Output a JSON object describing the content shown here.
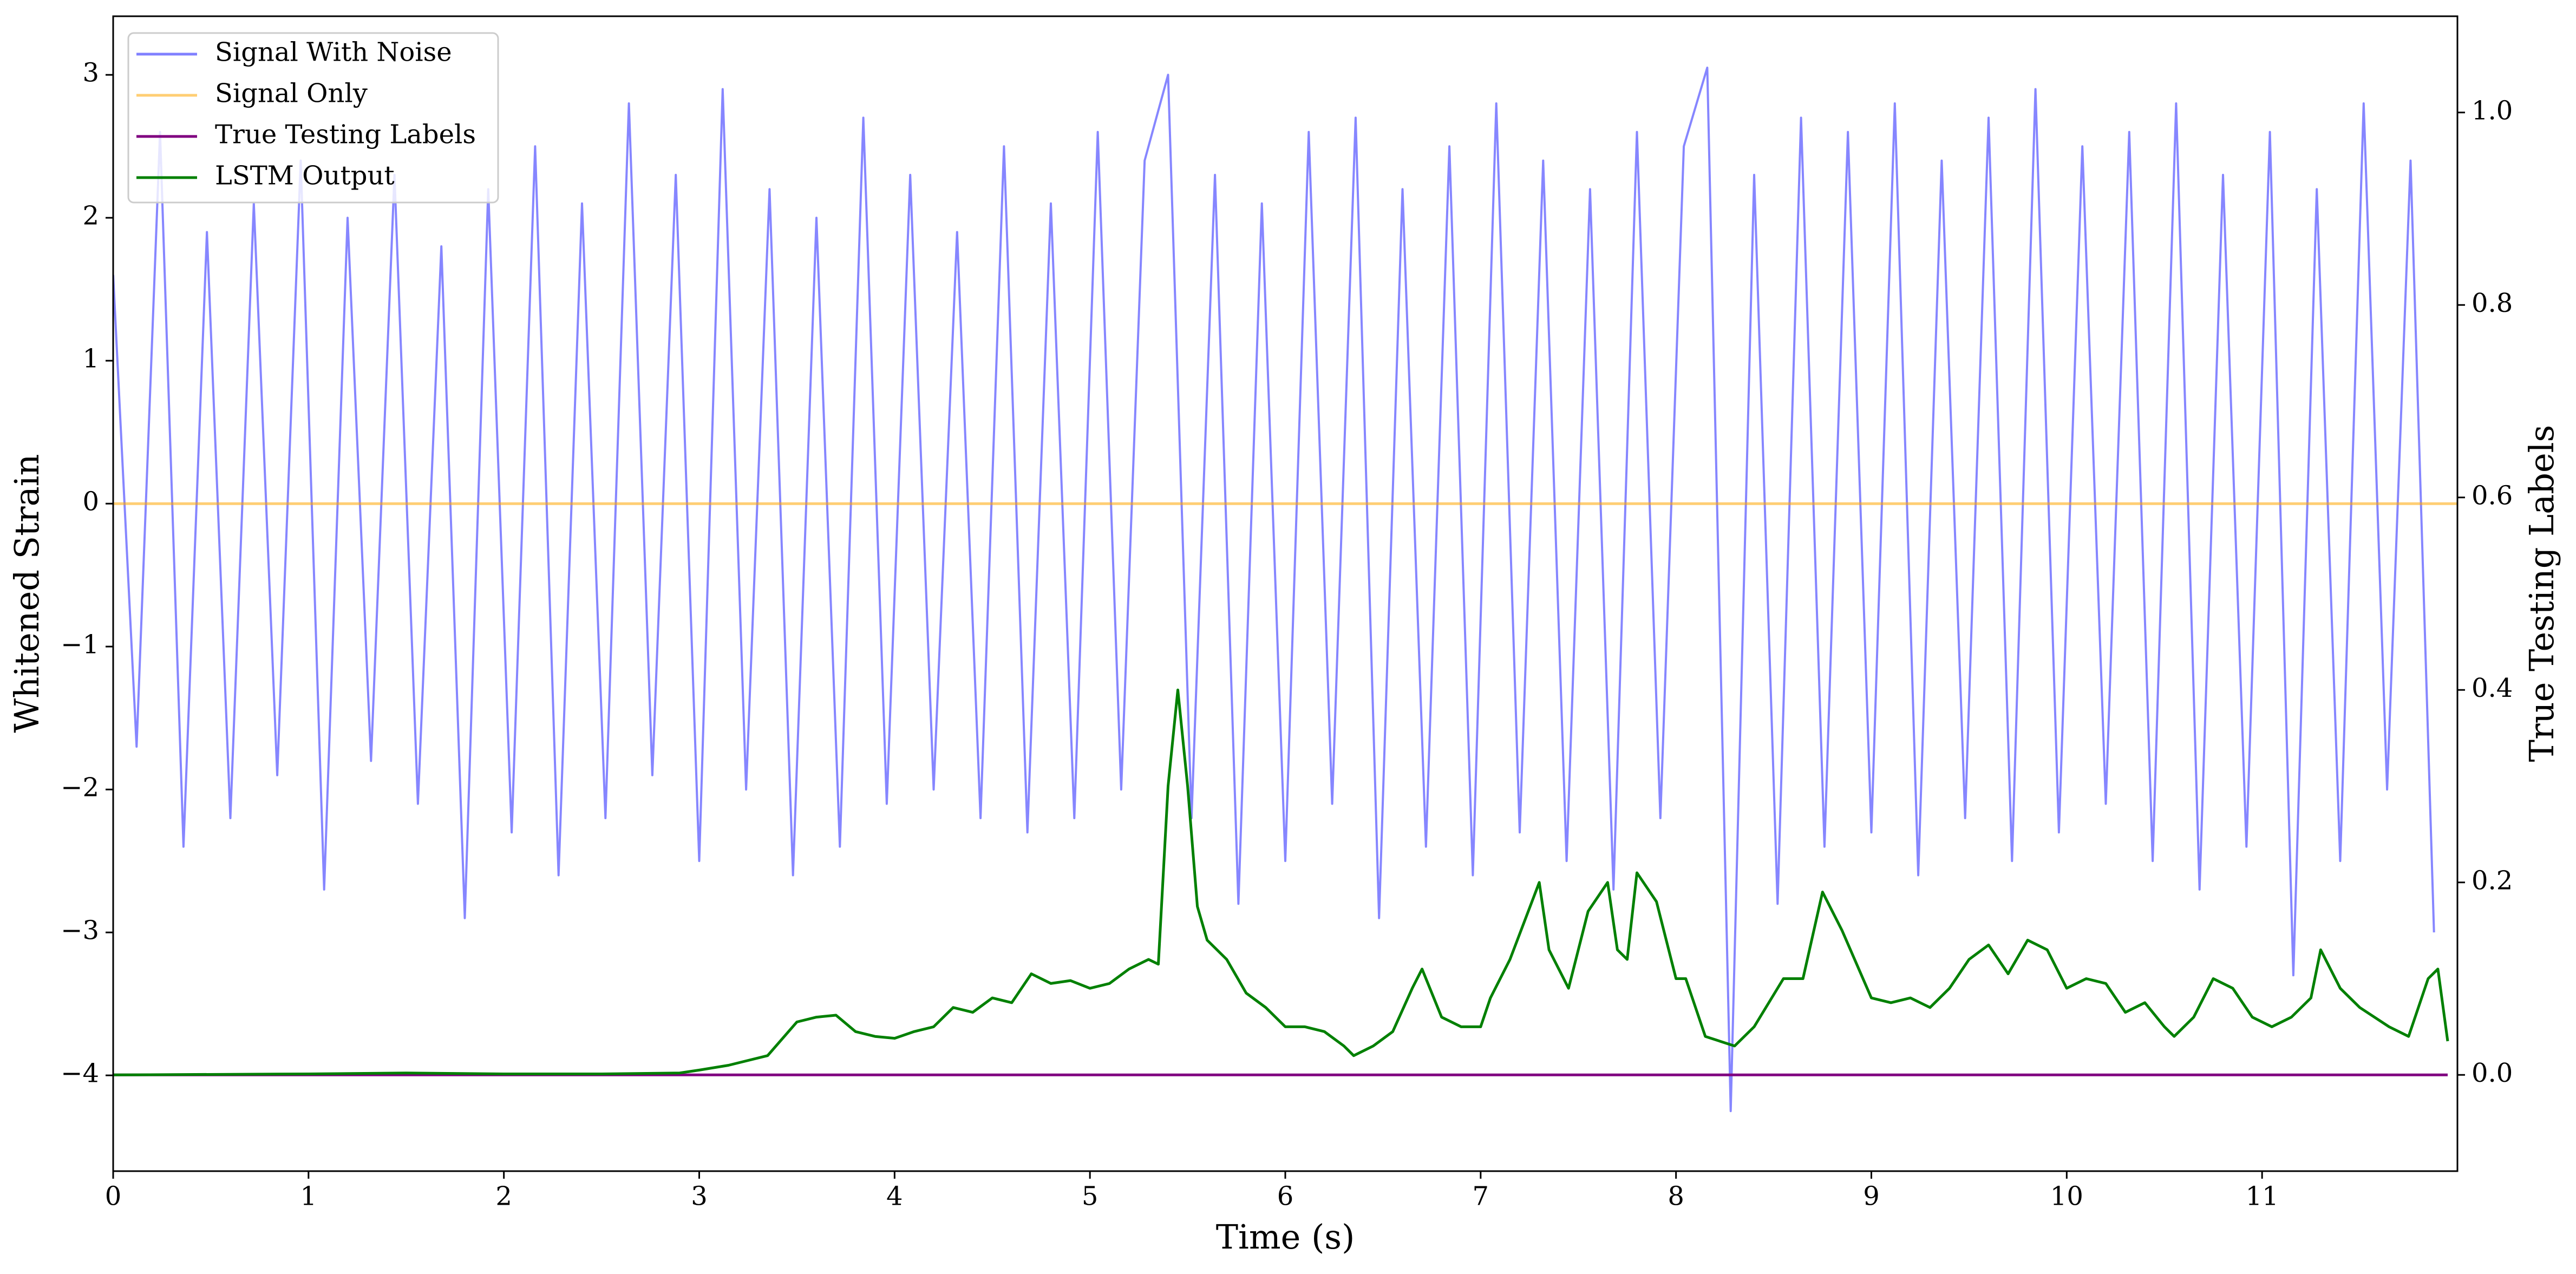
{
  "chart_data": {
    "type": "line",
    "x_label": "Time (s)",
    "y_label": "Whitened Strain",
    "y2_label": "True Testing Labels",
    "xlim": [
      0,
      12
    ],
    "xticks": [
      0,
      1,
      2,
      3,
      4,
      5,
      6,
      7,
      8,
      9,
      10,
      11
    ],
    "ylim": [
      -4.67,
      3.41
    ],
    "yticks": [
      {
        "value": -4,
        "label": "−4"
      },
      {
        "value": -3,
        "label": "−3"
      },
      {
        "value": -2,
        "label": "−2"
      },
      {
        "value": -1,
        "label": "−1"
      },
      0,
      1,
      2,
      3
    ],
    "y2lim": [
      -0.1,
      1.1
    ],
    "y2ticks": [
      {
        "value": 0,
        "label": "0.0"
      },
      {
        "value": 0.2,
        "label": "0.2"
      },
      {
        "value": 0.4,
        "label": "0.4"
      },
      {
        "value": 0.6,
        "label": "0.6"
      },
      {
        "value": 0.8,
        "label": "0.8"
      },
      {
        "value": 1.0,
        "label": "1.0"
      }
    ],
    "legend": "upper left",
    "series": [
      {
        "name": "Signal With Noise",
        "color": "#8080ff",
        "axis": "y",
        "x": [
          0,
          0.12,
          0.24,
          0.36,
          0.48,
          0.6,
          0.72,
          0.84,
          0.96,
          1.08,
          1.2,
          1.32,
          1.44,
          1.56,
          1.68,
          1.8,
          1.92,
          2.04,
          2.16,
          2.28,
          2.4,
          2.52,
          2.64,
          2.76,
          2.88,
          3.0,
          3.12,
          3.24,
          3.36,
          3.48,
          3.6,
          3.72,
          3.84,
          3.96,
          4.08,
          4.2,
          4.32,
          4.44,
          4.56,
          4.68,
          4.8,
          4.92,
          5.04,
          5.16,
          5.28,
          5.4,
          5.52,
          5.64,
          5.76,
          5.88,
          6.0,
          6.12,
          6.24,
          6.36,
          6.48,
          6.6,
          6.72,
          6.84,
          6.96,
          7.08,
          7.2,
          7.32,
          7.44,
          7.56,
          7.68,
          7.8,
          7.92,
          8.04,
          8.16,
          8.28,
          8.4,
          8.52,
          8.64,
          8.76,
          8.88,
          9.0,
          9.12,
          9.24,
          9.36,
          9.48,
          9.6,
          9.72,
          9.84,
          9.96,
          10.08,
          10.2,
          10.32,
          10.44,
          10.56,
          10.68,
          10.8,
          10.92,
          11.04,
          11.16,
          11.28,
          11.4,
          11.52,
          11.64,
          11.76,
          11.88
        ],
        "values": [
          1.6,
          -1.7,
          2.6,
          -2.4,
          1.9,
          -2.2,
          2.1,
          -1.9,
          2.4,
          -2.7,
          2.0,
          -1.8,
          2.3,
          -2.1,
          1.8,
          -2.9,
          2.2,
          -2.3,
          2.5,
          -2.6,
          2.1,
          -2.2,
          2.8,
          -1.9,
          2.3,
          -2.5,
          2.9,
          -2.0,
          2.2,
          -2.6,
          2.0,
          -2.4,
          2.7,
          -2.1,
          2.3,
          -2.0,
          1.9,
          -2.2,
          2.5,
          -2.3,
          2.1,
          -2.2,
          2.6,
          -2.0,
          2.4,
          3.0,
          -2.2,
          2.3,
          -2.8,
          2.1,
          -2.5,
          2.6,
          -2.1,
          2.7,
          -2.9,
          2.2,
          -2.4,
          2.5,
          -2.6,
          2.8,
          -2.3,
          2.4,
          -2.5,
          2.2,
          -2.7,
          2.6,
          -2.2,
          2.5,
          3.05,
          -4.25,
          2.3,
          -2.8,
          2.7,
          -2.4,
          2.6,
          -2.3,
          2.8,
          -2.6,
          2.4,
          -2.2,
          2.7,
          -2.5,
          2.9,
          -2.3,
          2.5,
          -2.1,
          2.6,
          -2.5,
          2.8,
          -2.7,
          2.3,
          -2.4,
          2.6,
          -3.3,
          2.2,
          -2.5,
          2.8,
          -2.0,
          2.4,
          -3.0
        ]
      },
      {
        "name": "Signal Only",
        "color": "#ffa500",
        "axis": "y",
        "x": [
          0,
          12
        ],
        "values": [
          0,
          0
        ]
      },
      {
        "name": "True Testing Labels",
        "color": "#800080",
        "axis": "y2",
        "x": [
          0,
          11.95
        ],
        "values": [
          0,
          0
        ]
      },
      {
        "name": "LSTM Output",
        "color": "#008000",
        "axis": "y2",
        "x": [
          0,
          1,
          1.5,
          2,
          2.5,
          2.9,
          3.0,
          3.15,
          3.35,
          3.5,
          3.6,
          3.7,
          3.8,
          3.9,
          4.0,
          4.1,
          4.2,
          4.3,
          4.4,
          4.5,
          4.6,
          4.7,
          4.8,
          4.9,
          5.0,
          5.1,
          5.2,
          5.3,
          5.35,
          5.4,
          5.45,
          5.5,
          5.55,
          5.6,
          5.7,
          5.8,
          5.9,
          6.0,
          6.1,
          6.2,
          6.3,
          6.35,
          6.45,
          6.55,
          6.65,
          6.7,
          6.8,
          6.9,
          7.0,
          7.05,
          7.15,
          7.3,
          7.35,
          7.45,
          7.55,
          7.65,
          7.7,
          7.75,
          7.8,
          7.9,
          8.0,
          8.05,
          8.15,
          8.3,
          8.4,
          8.55,
          8.65,
          8.75,
          8.85,
          9.0,
          9.1,
          9.2,
          9.3,
          9.4,
          9.5,
          9.6,
          9.7,
          9.8,
          9.9,
          10.0,
          10.1,
          10.2,
          10.3,
          10.4,
          10.5,
          10.55,
          10.65,
          10.75,
          10.85,
          10.95,
          11.05,
          11.15,
          11.25,
          11.3,
          11.4,
          11.5,
          11.65,
          11.75,
          11.85,
          11.9,
          11.95
        ],
        "values": [
          0,
          0.001,
          0.002,
          0.001,
          0.001,
          0.002,
          0.005,
          0.01,
          0.02,
          0.055,
          0.06,
          0.062,
          0.045,
          0.04,
          0.038,
          0.045,
          0.05,
          0.07,
          0.065,
          0.08,
          0.075,
          0.105,
          0.095,
          0.098,
          0.09,
          0.095,
          0.11,
          0.12,
          0.115,
          0.3,
          0.4,
          0.3,
          0.175,
          0.14,
          0.12,
          0.085,
          0.07,
          0.05,
          0.05,
          0.045,
          0.03,
          0.02,
          0.03,
          0.045,
          0.09,
          0.11,
          0.06,
          0.05,
          0.05,
          0.08,
          0.12,
          0.2,
          0.13,
          0.09,
          0.17,
          0.2,
          0.13,
          0.12,
          0.21,
          0.18,
          0.1,
          0.1,
          0.04,
          0.03,
          0.05,
          0.1,
          0.1,
          0.19,
          0.15,
          0.08,
          0.075,
          0.08,
          0.07,
          0.09,
          0.12,
          0.135,
          0.105,
          0.14,
          0.13,
          0.09,
          0.1,
          0.095,
          0.065,
          0.075,
          0.05,
          0.04,
          0.06,
          0.1,
          0.09,
          0.06,
          0.05,
          0.06,
          0.08,
          0.13,
          0.09,
          0.07,
          0.05,
          0.04,
          0.1,
          0.11,
          0.035
        ]
      }
    ]
  }
}
